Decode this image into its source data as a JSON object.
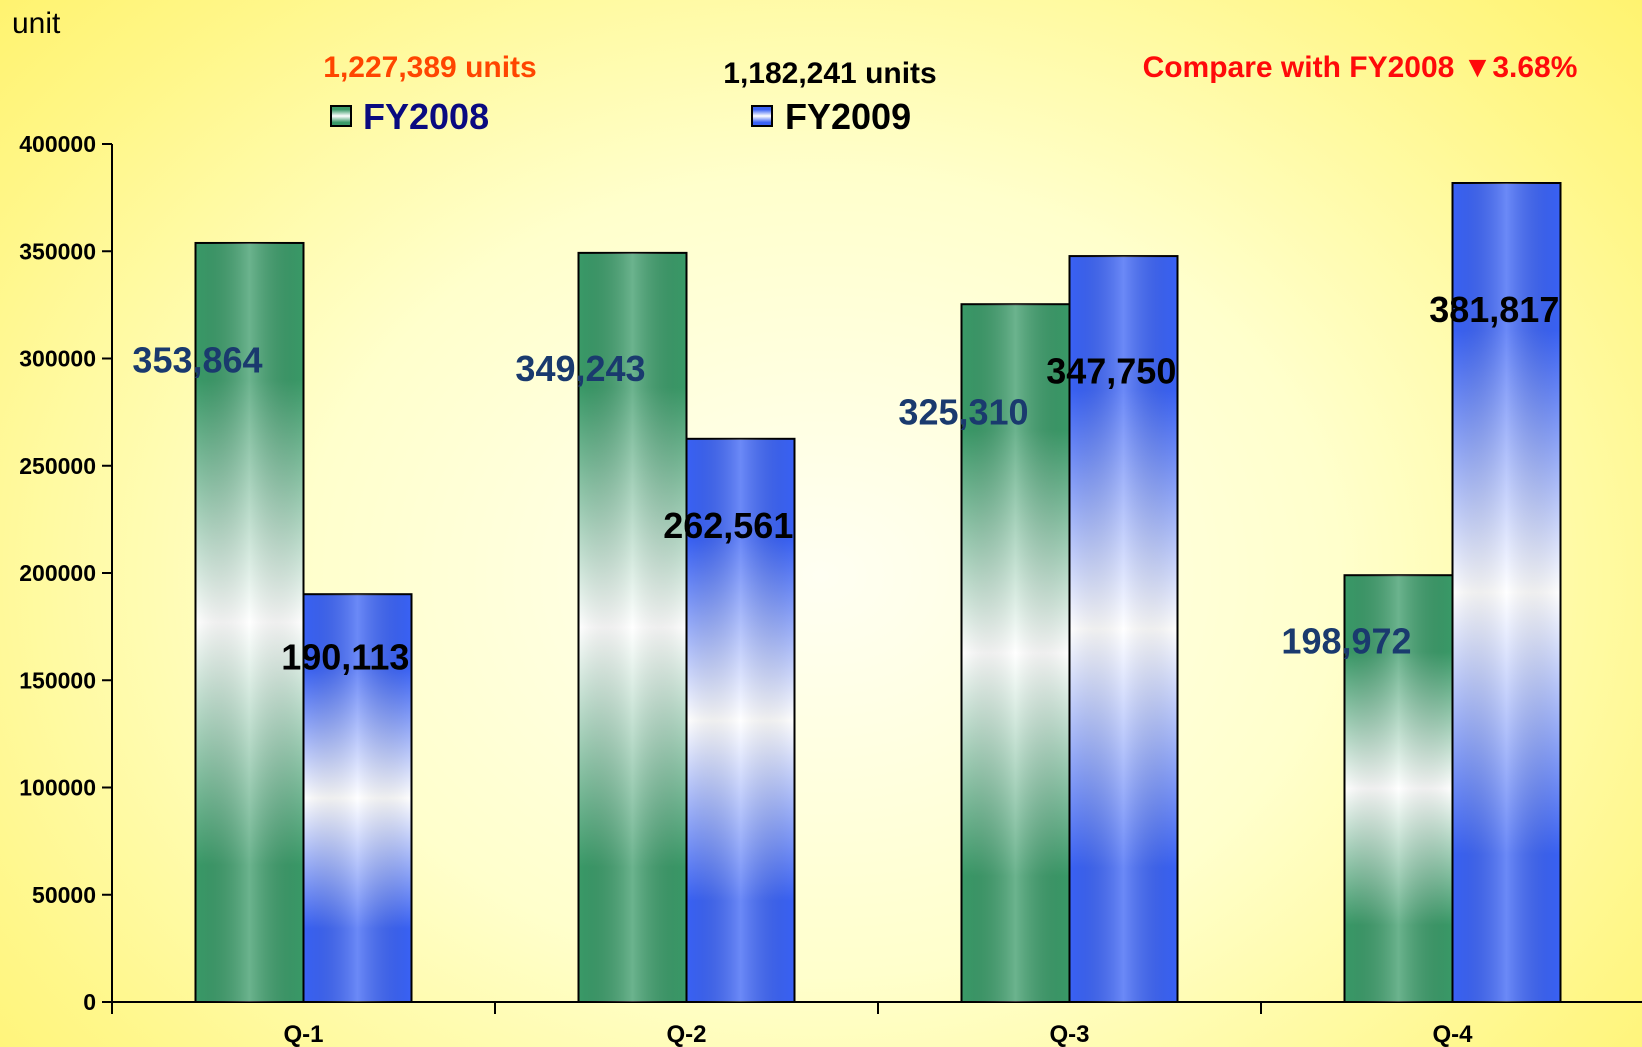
{
  "chart_data": {
    "type": "bar",
    "ylabel": "unit",
    "ylim": [
      0,
      400000
    ],
    "yticks": [
      0,
      50000,
      100000,
      150000,
      200000,
      250000,
      300000,
      350000,
      400000
    ],
    "categories": [
      "Q-1",
      "Q-2",
      "Q-3",
      "Q-4"
    ],
    "series": [
      {
        "name": "FY2008",
        "values": [
          353864,
          349243,
          325310,
          198972
        ],
        "labels": [
          "353,864",
          "349,243",
          "325,310",
          "198,972"
        ],
        "total_label": "1,227,389 units",
        "color": "#3a9a68",
        "label_color": "#1a3a6e",
        "total_color": "#ff4500"
      },
      {
        "name": "FY2009",
        "values": [
          190113,
          262561,
          347750,
          381817
        ],
        "labels": [
          "190,113",
          "262,561",
          "347,750",
          "381,817"
        ],
        "total_label": "1,182,241 units",
        "color": "#3a62f5",
        "label_color": "#000000",
        "total_color": "#000000"
      }
    ],
    "annotation": "Compare with FY2008 ▼3.68%",
    "annotation_color": "#ff0a0a",
    "legend_position": "top",
    "grid": false
  }
}
